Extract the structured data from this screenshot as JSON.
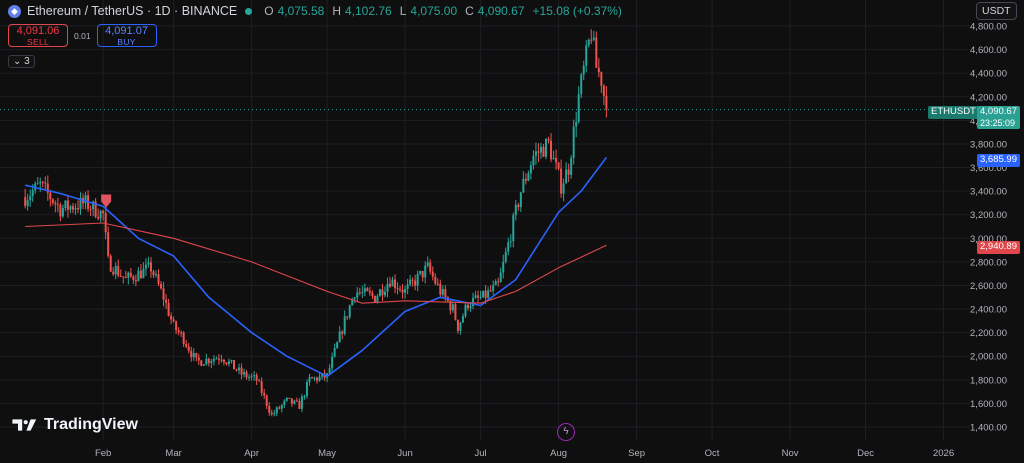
{
  "header": {
    "symbol_title": "Ethereum / TetherUS · 1D · BINANCE",
    "open_label": "O",
    "open": "4,075.58",
    "high_label": "H",
    "high": "4,102.76",
    "low_label": "L",
    "low": "4,075.00",
    "close_label": "C",
    "close": "4,090.67",
    "change": "+15.08 (+0.37%)"
  },
  "trade": {
    "sell_price": "4,091.06",
    "sell_label": "SELL",
    "spread": "0.01",
    "buy_price": "4,091.07",
    "buy_label": "BUY"
  },
  "indicators_toggle": "3",
  "currency": "USDT",
  "branding": "TradingView",
  "tags": {
    "symbol": "ETHUSDT",
    "last_price": "4,090.67",
    "countdown": "23:25:09",
    "ma_fast": "3,685.99",
    "ma_slow": "2,940.89"
  },
  "colors": {
    "up": "#26a69a",
    "down": "#ef5350",
    "ma_fast": "#2962ff",
    "ma_slow": "#e0474b",
    "background": "#0f0f0f"
  },
  "chart_data": {
    "type": "candlestick",
    "x_ticks": [
      "Feb",
      "Mar",
      "Apr",
      "May",
      "Jun",
      "Jul",
      "Aug",
      "Sep",
      "Oct",
      "Nov",
      "Dec",
      "2026"
    ],
    "y_ticks": [
      "1,400.00",
      "1,600.00",
      "1,800.00",
      "2,000.00",
      "2,200.00",
      "2,400.00",
      "2,600.00",
      "2,800.00",
      "3,000.00",
      "3,200.00",
      "3,400.00",
      "3,600.00",
      "3,800.00",
      "4,000.00",
      "4,200.00",
      "4,400.00",
      "4,600.00",
      "4,800.00"
    ],
    "ylim": [
      1300,
      4900
    ],
    "last_price": 4090.67,
    "close_path": [
      [
        "2025-01-01",
        3350
      ],
      [
        "2025-01-07",
        3450
      ],
      [
        "2025-01-15",
        3250
      ],
      [
        "2025-01-25",
        3300
      ],
      [
        "2025-02-01",
        3200
      ],
      [
        "2025-02-03",
        2800
      ],
      [
        "2025-02-10",
        2650
      ],
      [
        "2025-02-20",
        2750
      ],
      [
        "2025-02-25",
        2500
      ],
      [
        "2025-03-01",
        2250
      ],
      [
        "2025-03-05",
        2150
      ],
      [
        "2025-03-10",
        1950
      ],
      [
        "2025-03-20",
        2000
      ],
      [
        "2025-03-28",
        1850
      ],
      [
        "2025-04-03",
        1800
      ],
      [
        "2025-04-09",
        1500
      ],
      [
        "2025-04-15",
        1620
      ],
      [
        "2025-04-20",
        1580
      ],
      [
        "2025-04-24",
        1800
      ],
      [
        "2025-05-01",
        1830
      ],
      [
        "2025-05-08",
        2300
      ],
      [
        "2025-05-12",
        2550
      ],
      [
        "2025-05-20",
        2500
      ],
      [
        "2025-05-26",
        2650
      ],
      [
        "2025-06-01",
        2550
      ],
      [
        "2025-06-10",
        2750
      ],
      [
        "2025-06-15",
        2550
      ],
      [
        "2025-06-20",
        2400
      ],
      [
        "2025-06-22",
        2250
      ],
      [
        "2025-06-26",
        2450
      ],
      [
        "2025-07-02",
        2500
      ],
      [
        "2025-07-08",
        2600
      ],
      [
        "2025-07-12",
        2950
      ],
      [
        "2025-07-17",
        3400
      ],
      [
        "2025-07-22",
        3700
      ],
      [
        "2025-07-28",
        3800
      ],
      [
        "2025-08-02",
        3450
      ],
      [
        "2025-08-05",
        3600
      ],
      [
        "2025-08-09",
        4200
      ],
      [
        "2025-08-13",
        4650
      ],
      [
        "2025-08-14",
        4750
      ],
      [
        "2025-08-16",
        4450
      ],
      [
        "2025-08-18",
        4350
      ],
      [
        "2025-08-20",
        4090
      ]
    ],
    "series": [
      {
        "kind": "moving_average",
        "color": "#2962ff",
        "last_value": 3685.99,
        "points": [
          [
            "2025-01-01",
            3450
          ],
          [
            "2025-01-15",
            3380
          ],
          [
            "2025-02-01",
            3270
          ],
          [
            "2025-02-15",
            3000
          ],
          [
            "2025-03-01",
            2850
          ],
          [
            "2025-03-15",
            2500
          ],
          [
            "2025-04-01",
            2200
          ],
          [
            "2025-04-15",
            2000
          ],
          [
            "2025-05-01",
            1830
          ],
          [
            "2025-05-15",
            2050
          ],
          [
            "2025-06-01",
            2380
          ],
          [
            "2025-06-15",
            2500
          ],
          [
            "2025-07-01",
            2430
          ],
          [
            "2025-07-15",
            2650
          ],
          [
            "2025-08-01",
            3220
          ],
          [
            "2025-08-10",
            3400
          ],
          [
            "2025-08-20",
            3686
          ]
        ]
      },
      {
        "kind": "moving_average",
        "color": "#e0474b",
        "last_value": 2940.89,
        "points": [
          [
            "2025-01-01",
            3100
          ],
          [
            "2025-02-01",
            3130
          ],
          [
            "2025-03-01",
            3000
          ],
          [
            "2025-04-01",
            2800
          ],
          [
            "2025-05-01",
            2550
          ],
          [
            "2025-05-15",
            2450
          ],
          [
            "2025-06-01",
            2470
          ],
          [
            "2025-07-01",
            2450
          ],
          [
            "2025-07-15",
            2550
          ],
          [
            "2025-08-01",
            2750
          ],
          [
            "2025-08-20",
            2941
          ]
        ]
      }
    ]
  }
}
